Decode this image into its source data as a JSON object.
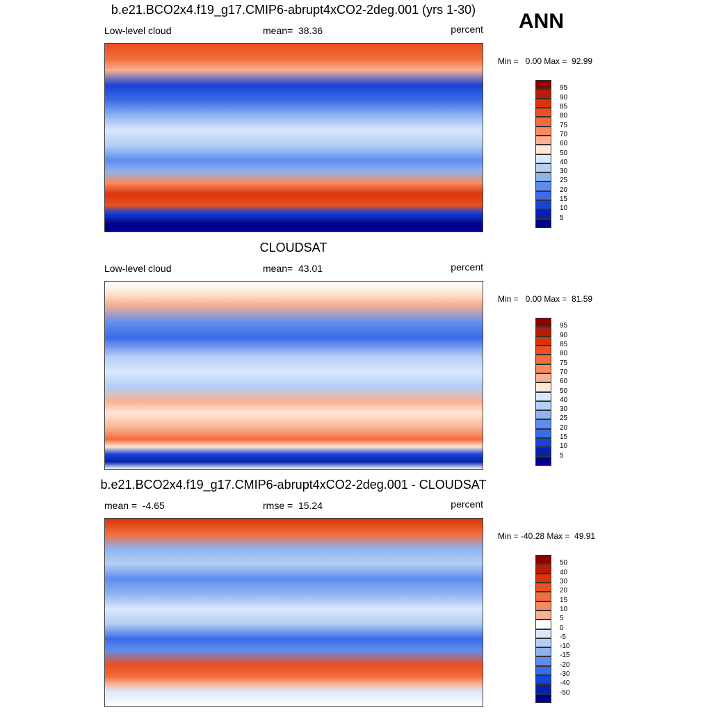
{
  "header": {
    "season": "ANN"
  },
  "panels": [
    {
      "title": "b.e21.BCO2x4.f19_g17.CMIP6-abrupt4xCO2-2deg.001 (yrs 1-30)",
      "left": "Low-level cloud",
      "center": "mean=  38.36",
      "right": "percent",
      "minmax": "Min =   0.00 Max =  92.99",
      "colorbar": {
        "labels": [
          95,
          90,
          85,
          80,
          75,
          70,
          60,
          50,
          40,
          30,
          25,
          20,
          15,
          10,
          5
        ],
        "colors": [
          "#8c0000",
          "#b81c04",
          "#d9340a",
          "#eb5020",
          "#f26c3c",
          "#f78b60",
          "#f9b192",
          "#fde7d6",
          "#d9e8fb",
          "#b4cef5",
          "#8fb2f0",
          "#5e8def",
          "#3a6be8",
          "#1843d6",
          "#0622ab",
          "#00008a"
        ]
      }
    },
    {
      "title": "CLOUDSAT",
      "left": "Low-level cloud",
      "center": "mean=  43.01",
      "right": "percent",
      "minmax": "Min =   0.00 Max =  81.59",
      "colorbar": {
        "labels": [
          95,
          90,
          85,
          80,
          75,
          70,
          60,
          50,
          40,
          30,
          25,
          20,
          15,
          10,
          5
        ],
        "colors": [
          "#8c0000",
          "#b81c04",
          "#d9340a",
          "#eb5020",
          "#f26c3c",
          "#f78b60",
          "#f9b192",
          "#fde7d6",
          "#d9e8fb",
          "#b4cef5",
          "#8fb2f0",
          "#5e8def",
          "#3a6be8",
          "#1843d6",
          "#0622ab",
          "#00008a"
        ]
      }
    },
    {
      "title": "b.e21.BCO2x4.f19_g17.CMIP6-abrupt4xCO2-2deg.001 - CLOUDSAT",
      "left": "mean =  -4.65",
      "center": "rmse =  15.24",
      "right": "percent",
      "minmax": "Min = -40.28 Max =  49.91",
      "colorbar": {
        "labels": [
          50,
          40,
          30,
          20,
          15,
          10,
          5,
          0,
          -5,
          -10,
          -15,
          -20,
          -30,
          -40,
          -50
        ],
        "colors": [
          "#8c0000",
          "#b81c04",
          "#d9340a",
          "#eb5020",
          "#f26c3c",
          "#f78b60",
          "#f9b192",
          "#ffffff",
          "#d9e8fb",
          "#b4cef5",
          "#8fb2f0",
          "#5e8def",
          "#3a6be8",
          "#1843d6",
          "#0622ab",
          "#00008a"
        ]
      }
    }
  ]
}
